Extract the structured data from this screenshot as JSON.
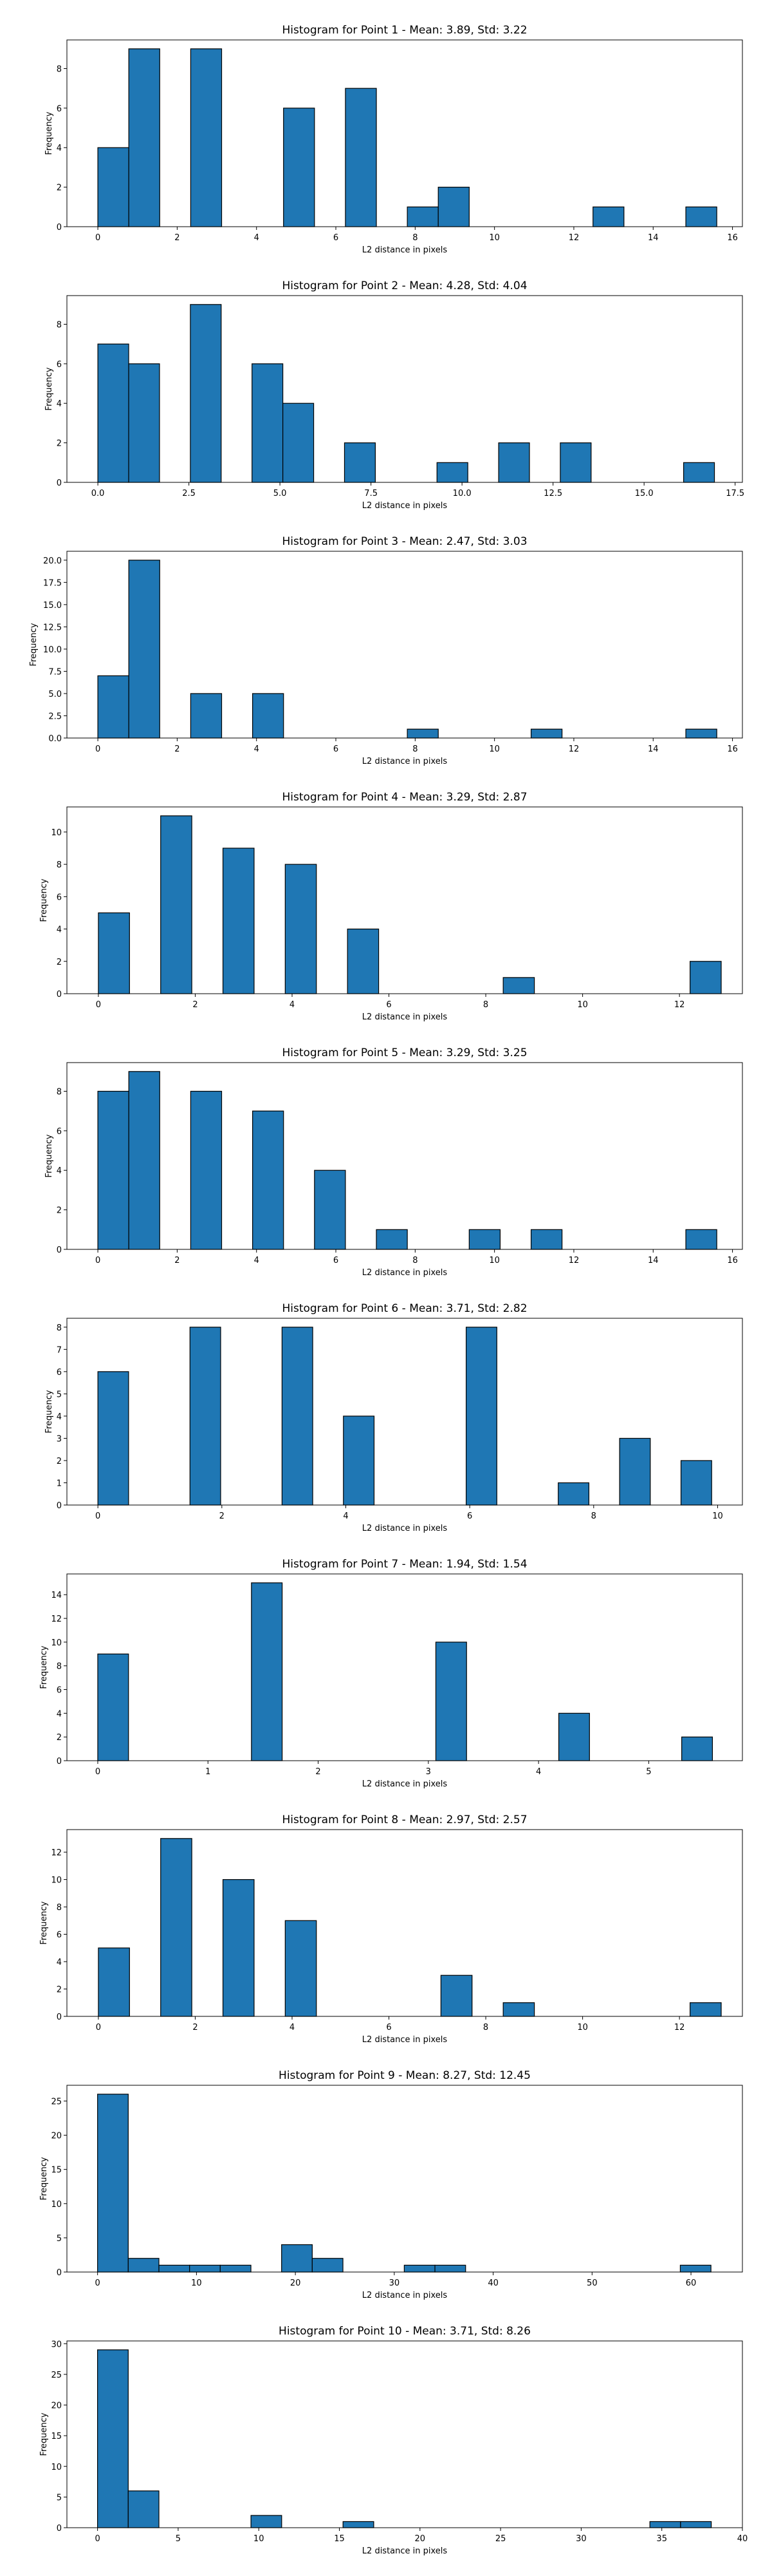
{
  "chart_data": [
    {
      "type": "bar",
      "title": "Histogram for Point 1 - Mean: 3.89, Std: 3.22",
      "xlabel": "L2 distance in pixels",
      "ylabel": "Frequency",
      "xlim": [
        -0.78,
        16.25
      ],
      "ylim": [
        0,
        9.45
      ],
      "xticks": [
        {
          "v": 0,
          "l": "0"
        },
        {
          "v": 2,
          "l": "2"
        },
        {
          "v": 4,
          "l": "4"
        },
        {
          "v": 6,
          "l": "6"
        },
        {
          "v": 8,
          "l": "8"
        },
        {
          "v": 10,
          "l": "10"
        },
        {
          "v": 12,
          "l": "12"
        },
        {
          "v": 14,
          "l": "14"
        },
        {
          "v": 16,
          "l": "16"
        }
      ],
      "yticks": [
        {
          "v": 0,
          "l": "0"
        },
        {
          "v": 2,
          "l": "2"
        },
        {
          "v": 4,
          "l": "4"
        },
        {
          "v": 6,
          "l": "6"
        },
        {
          "v": 8,
          "l": "8"
        }
      ],
      "bins": {
        "start": 0,
        "width": 0.7802,
        "values": [
          4,
          9,
          0,
          9,
          0,
          0,
          6,
          0,
          7,
          0,
          1,
          2,
          0,
          0,
          0,
          0,
          1,
          0,
          0,
          1
        ]
      }
    },
    {
      "type": "bar",
      "title": "Histogram for Point 2 - Mean: 4.28, Std: 4.04",
      "xlabel": "L2 distance in pixels",
      "ylabel": "Frequency",
      "xlim": [
        -0.85,
        17.7
      ],
      "ylim": [
        0,
        9.45
      ],
      "xticks": [
        {
          "v": 0,
          "l": "0.0"
        },
        {
          "v": 2.5,
          "l": "2.5"
        },
        {
          "v": 5,
          "l": "5.0"
        },
        {
          "v": 7.5,
          "l": "7.5"
        },
        {
          "v": 10,
          "l": "10.0"
        },
        {
          "v": 12.5,
          "l": "12.5"
        },
        {
          "v": 15,
          "l": "15.0"
        },
        {
          "v": 17.5,
          "l": "17.5"
        }
      ],
      "yticks": [
        {
          "v": 0,
          "l": "0"
        },
        {
          "v": 2,
          "l": "2"
        },
        {
          "v": 4,
          "l": "4"
        },
        {
          "v": 6,
          "l": "6"
        },
        {
          "v": 8,
          "l": "8"
        }
      ],
      "bins": {
        "start": 0,
        "width": 0.8466,
        "values": [
          7,
          6,
          0,
          9,
          0,
          6,
          4,
          0,
          2,
          0,
          0,
          1,
          0,
          2,
          0,
          2,
          0,
          0,
          0,
          1
        ]
      }
    },
    {
      "type": "bar",
      "title": "Histogram for Point 3 - Mean: 2.47, Std: 3.03",
      "xlabel": "L2 distance in pixels",
      "ylabel": "Frequency",
      "xlim": [
        -0.78,
        16.25
      ],
      "ylim": [
        0,
        21
      ],
      "xticks": [
        {
          "v": 0,
          "l": "0"
        },
        {
          "v": 2,
          "l": "2"
        },
        {
          "v": 4,
          "l": "4"
        },
        {
          "v": 6,
          "l": "6"
        },
        {
          "v": 8,
          "l": "8"
        },
        {
          "v": 10,
          "l": "10"
        },
        {
          "v": 12,
          "l": "12"
        },
        {
          "v": 14,
          "l": "14"
        },
        {
          "v": 16,
          "l": "16"
        }
      ],
      "yticks": [
        {
          "v": 0,
          "l": "0.0"
        },
        {
          "v": 2.5,
          "l": "2.5"
        },
        {
          "v": 5,
          "l": "5.0"
        },
        {
          "v": 7.5,
          "l": "7.5"
        },
        {
          "v": 10,
          "l": "10.0"
        },
        {
          "v": 12.5,
          "l": "12.5"
        },
        {
          "v": 15,
          "l": "15.0"
        },
        {
          "v": 17.5,
          "l": "17.5"
        },
        {
          "v": 20,
          "l": "20.0"
        }
      ],
      "bins": {
        "start": 0,
        "width": 0.7802,
        "values": [
          7,
          20,
          0,
          5,
          0,
          5,
          0,
          0,
          0,
          0,
          1,
          0,
          0,
          0,
          1,
          0,
          0,
          0,
          0,
          1
        ]
      }
    },
    {
      "type": "bar",
      "title": "Histogram for Point 4 - Mean: 3.29, Std: 2.87",
      "xlabel": "L2 distance in pixels",
      "ylabel": "Frequency",
      "xlim": [
        -0.65,
        13.3
      ],
      "ylim": [
        0,
        11.55
      ],
      "xticks": [
        {
          "v": 0,
          "l": "0"
        },
        {
          "v": 2,
          "l": "2"
        },
        {
          "v": 4,
          "l": "4"
        },
        {
          "v": 6,
          "l": "6"
        },
        {
          "v": 8,
          "l": "8"
        },
        {
          "v": 10,
          "l": "10"
        },
        {
          "v": 12,
          "l": "12"
        }
      ],
      "yticks": [
        {
          "v": 0,
          "l": "0"
        },
        {
          "v": 2,
          "l": "2"
        },
        {
          "v": 4,
          "l": "4"
        },
        {
          "v": 6,
          "l": "6"
        },
        {
          "v": 8,
          "l": "8"
        },
        {
          "v": 10,
          "l": "10"
        }
      ],
      "bins": {
        "start": 0,
        "width": 0.6431,
        "values": [
          5,
          0,
          11,
          0,
          9,
          0,
          8,
          0,
          4,
          0,
          0,
          0,
          0,
          1,
          0,
          0,
          0,
          0,
          0,
          2
        ]
      }
    },
    {
      "type": "bar",
      "title": "Histogram for Point 5 - Mean: 3.29, Std: 3.25",
      "xlabel": "L2 distance in pixels",
      "ylabel": "Frequency",
      "xlim": [
        -0.78,
        16.25
      ],
      "ylim": [
        0,
        9.45
      ],
      "xticks": [
        {
          "v": 0,
          "l": "0"
        },
        {
          "v": 2,
          "l": "2"
        },
        {
          "v": 4,
          "l": "4"
        },
        {
          "v": 6,
          "l": "6"
        },
        {
          "v": 8,
          "l": "8"
        },
        {
          "v": 10,
          "l": "10"
        },
        {
          "v": 12,
          "l": "12"
        },
        {
          "v": 14,
          "l": "14"
        },
        {
          "v": 16,
          "l": "16"
        }
      ],
      "yticks": [
        {
          "v": 0,
          "l": "0"
        },
        {
          "v": 2,
          "l": "2"
        },
        {
          "v": 4,
          "l": "4"
        },
        {
          "v": 6,
          "l": "6"
        },
        {
          "v": 8,
          "l": "8"
        }
      ],
      "bins": {
        "start": 0,
        "width": 0.7802,
        "values": [
          8,
          9,
          0,
          8,
          0,
          7,
          0,
          4,
          0,
          1,
          0,
          0,
          1,
          0,
          1,
          0,
          0,
          0,
          0,
          1
        ]
      }
    },
    {
      "type": "bar",
      "title": "Histogram for Point 6 - Mean: 3.71, Std: 2.82",
      "xlabel": "L2 distance in pixels",
      "ylabel": "Frequency",
      "xlim": [
        -0.5,
        10.4
      ],
      "ylim": [
        0,
        8.4
      ],
      "xticks": [
        {
          "v": 0,
          "l": "0"
        },
        {
          "v": 2,
          "l": "2"
        },
        {
          "v": 4,
          "l": "4"
        },
        {
          "v": 6,
          "l": "6"
        },
        {
          "v": 8,
          "l": "8"
        },
        {
          "v": 10,
          "l": "10"
        }
      ],
      "yticks": [
        {
          "v": 0,
          "l": "0"
        },
        {
          "v": 1,
          "l": "1"
        },
        {
          "v": 2,
          "l": "2"
        },
        {
          "v": 3,
          "l": "3"
        },
        {
          "v": 4,
          "l": "4"
        },
        {
          "v": 5,
          "l": "5"
        },
        {
          "v": 6,
          "l": "6"
        },
        {
          "v": 7,
          "l": "7"
        },
        {
          "v": 8,
          "l": "8"
        }
      ],
      "bins": {
        "start": 0,
        "width": 0.4952,
        "values": [
          6,
          0,
          0,
          8,
          0,
          0,
          8,
          0,
          4,
          0,
          0,
          0,
          8,
          0,
          0,
          1,
          0,
          3,
          0,
          2
        ]
      }
    },
    {
      "type": "bar",
      "title": "Histogram for Point 7 - Mean: 1.94, Std: 1.54",
      "xlabel": "L2 distance in pixels",
      "ylabel": "Frequency",
      "xlim": [
        -0.28,
        5.85
      ],
      "ylim": [
        0,
        15.75
      ],
      "xticks": [
        {
          "v": 0,
          "l": "0"
        },
        {
          "v": 1,
          "l": "1"
        },
        {
          "v": 2,
          "l": "2"
        },
        {
          "v": 3,
          "l": "3"
        },
        {
          "v": 4,
          "l": "4"
        },
        {
          "v": 5,
          "l": "5"
        }
      ],
      "yticks": [
        {
          "v": 0,
          "l": "0"
        },
        {
          "v": 2,
          "l": "2"
        },
        {
          "v": 4,
          "l": "4"
        },
        {
          "v": 6,
          "l": "6"
        },
        {
          "v": 8,
          "l": "8"
        },
        {
          "v": 10,
          "l": "10"
        },
        {
          "v": 12,
          "l": "12"
        },
        {
          "v": 14,
          "l": "14"
        }
      ],
      "bins": {
        "start": 0,
        "width": 0.2789,
        "values": [
          9,
          0,
          0,
          0,
          0,
          15,
          0,
          0,
          0,
          0,
          0,
          10,
          0,
          0,
          0,
          4,
          0,
          0,
          0,
          2
        ]
      }
    },
    {
      "type": "bar",
      "title": "Histogram for Point 8 - Mean: 2.97, Std: 2.57",
      "xlabel": "L2 distance in pixels",
      "ylabel": "Frequency",
      "xlim": [
        -0.65,
        13.3
      ],
      "ylim": [
        0,
        13.65
      ],
      "xticks": [
        {
          "v": 0,
          "l": "0"
        },
        {
          "v": 2,
          "l": "2"
        },
        {
          "v": 4,
          "l": "4"
        },
        {
          "v": 6,
          "l": "6"
        },
        {
          "v": 8,
          "l": "8"
        },
        {
          "v": 10,
          "l": "10"
        },
        {
          "v": 12,
          "l": "12"
        }
      ],
      "yticks": [
        {
          "v": 0,
          "l": "0"
        },
        {
          "v": 2,
          "l": "2"
        },
        {
          "v": 4,
          "l": "4"
        },
        {
          "v": 6,
          "l": "6"
        },
        {
          "v": 8,
          "l": "8"
        },
        {
          "v": 10,
          "l": "10"
        },
        {
          "v": 12,
          "l": "12"
        }
      ],
      "bins": {
        "start": 0,
        "width": 0.6431,
        "values": [
          5,
          0,
          13,
          0,
          10,
          0,
          7,
          0,
          0,
          0,
          0,
          3,
          0,
          1,
          0,
          0,
          0,
          0,
          0,
          1
        ]
      }
    },
    {
      "type": "bar",
      "title": "Histogram for Point 9 - Mean: 8.27, Std: 12.45",
      "xlabel": "L2 distance in pixels",
      "ylabel": "Frequency",
      "xlim": [
        -3.1,
        65.2
      ],
      "ylim": [
        0,
        27.3
      ],
      "xticks": [
        {
          "v": 0,
          "l": "0"
        },
        {
          "v": 10,
          "l": "10"
        },
        {
          "v": 20,
          "l": "20"
        },
        {
          "v": 30,
          "l": "30"
        },
        {
          "v": 40,
          "l": "40"
        },
        {
          "v": 50,
          "l": "50"
        },
        {
          "v": 60,
          "l": "60"
        }
      ],
      "yticks": [
        {
          "v": 0,
          "l": "0"
        },
        {
          "v": 5,
          "l": "5"
        },
        {
          "v": 10,
          "l": "10"
        },
        {
          "v": 15,
          "l": "15"
        },
        {
          "v": 20,
          "l": "20"
        },
        {
          "v": 25,
          "l": "25"
        }
      ],
      "bins": {
        "start": 0,
        "width": 3.101,
        "values": [
          26,
          2,
          1,
          1,
          1,
          0,
          4,
          2,
          0,
          0,
          1,
          1,
          0,
          0,
          0,
          0,
          0,
          0,
          0,
          1
        ]
      }
    },
    {
      "type": "bar",
      "title": "Histogram for Point 10 - Mean: 3.71, Std: 8.26",
      "xlabel": "L2 distance in pixels",
      "ylabel": "Frequency",
      "xlim": [
        -1.9,
        40.0
      ],
      "ylim": [
        0,
        30.45
      ],
      "xticks": [
        {
          "v": 0,
          "l": "0"
        },
        {
          "v": 5,
          "l": "5"
        },
        {
          "v": 10,
          "l": "10"
        },
        {
          "v": 15,
          "l": "15"
        },
        {
          "v": 20,
          "l": "20"
        },
        {
          "v": 25,
          "l": "25"
        },
        {
          "v": 30,
          "l": "30"
        },
        {
          "v": 35,
          "l": "35"
        },
        {
          "v": 40,
          "l": "40"
        }
      ],
      "yticks": [
        {
          "v": 0,
          "l": "0"
        },
        {
          "v": 5,
          "l": "5"
        },
        {
          "v": 10,
          "l": "10"
        },
        {
          "v": 15,
          "l": "15"
        },
        {
          "v": 20,
          "l": "20"
        },
        {
          "v": 25,
          "l": "25"
        },
        {
          "v": 30,
          "l": "30"
        }
      ],
      "bins": {
        "start": 0,
        "width": 1.9034,
        "values": [
          29,
          6,
          0,
          0,
          0,
          2,
          0,
          0,
          1,
          0,
          0,
          0,
          0,
          0,
          0,
          0,
          0,
          0,
          1,
          1
        ]
      }
    }
  ],
  "style": {
    "bar_color": "#1f77b4",
    "edge_color": "#000000"
  }
}
